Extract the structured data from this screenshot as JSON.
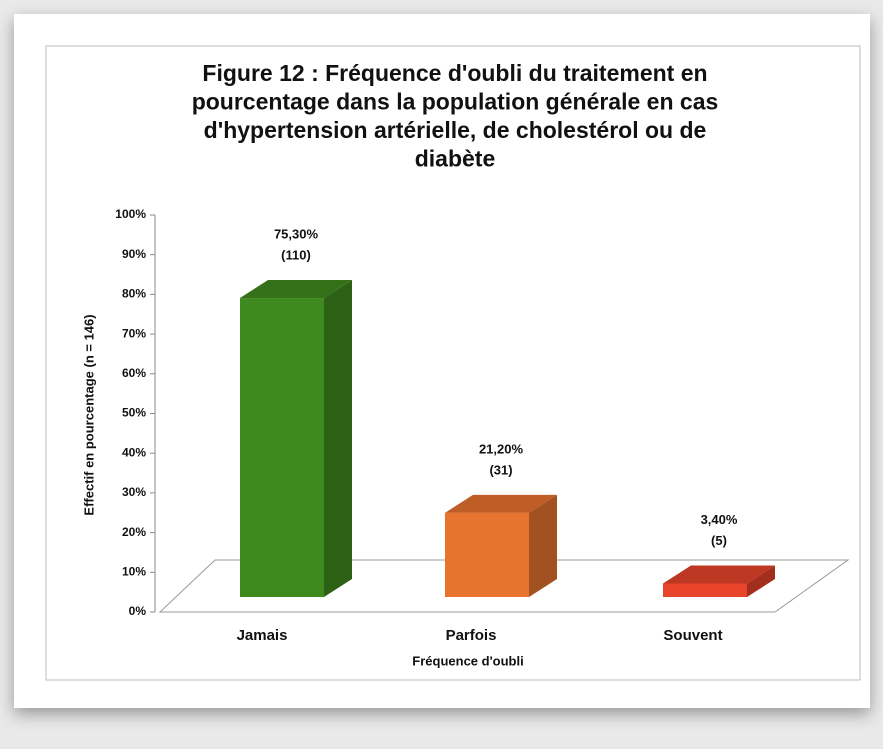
{
  "chart_data": {
    "type": "bar3d",
    "title": [
      "Figure 12 : Fréquence d'oubli du traitement en",
      "pourcentage dans la population générale en cas",
      "d'hypertension artérielle, de cholestérol ou de",
      "diabète"
    ],
    "x_label": "Fréquence d'oubli",
    "y_label": "Effectif en pourcentage (n = 146)",
    "categories": [
      "Jamais",
      "Parfois",
      "Souvent"
    ],
    "values": [
      75.3,
      21.2,
      3.4
    ],
    "value_labels": [
      "75,30%",
      "21,20%",
      "3,40%"
    ],
    "count_labels": [
      "(110)",
      "(31)",
      "(5)"
    ],
    "colors": [
      "#3f8a1e",
      "#e8732e",
      "#e8432b"
    ],
    "ylim": [
      0,
      100
    ],
    "yticks": [
      {
        "value": 0,
        "label": "0%"
      },
      {
        "value": 10,
        "label": "10%"
      },
      {
        "value": 20,
        "label": "20%"
      },
      {
        "value": 30,
        "label": "30%"
      },
      {
        "value": 40,
        "label": "40%"
      },
      {
        "value": 50,
        "label": "50%"
      },
      {
        "value": 60,
        "label": "60%"
      },
      {
        "value": 70,
        "label": "70%"
      },
      {
        "value": 80,
        "label": "80%"
      },
      {
        "value": 90,
        "label": "90%"
      },
      {
        "value": 100,
        "label": "100%"
      }
    ]
  }
}
